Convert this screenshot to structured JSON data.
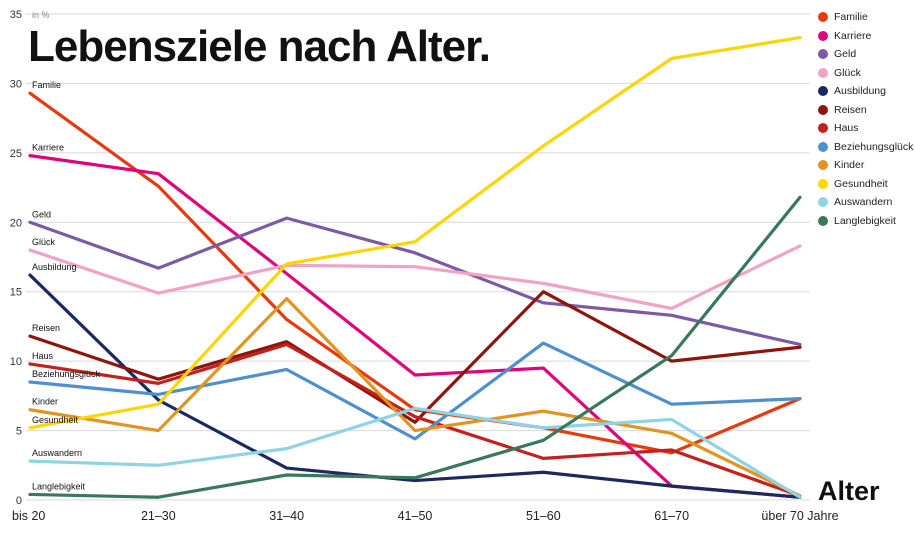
{
  "title": "Lebensziele nach Alter.",
  "chart_data": {
    "type": "line",
    "title": "Lebensziele nach Alter.",
    "unit_label": "in %",
    "xlabel": "Alter",
    "ylabel": "",
    "ylim": [
      0,
      35
    ],
    "y_ticks": [
      0,
      5,
      10,
      15,
      20,
      25,
      30,
      35
    ],
    "grid": true,
    "legend_position": "right",
    "categories": [
      "bis 20",
      "21–30",
      "31–40",
      "41–50",
      "51–60",
      "61–70",
      "über 70 Jahre"
    ],
    "series": [
      {
        "name": "Familie",
        "color": "#e8390e",
        "values": [
          29.3,
          22.6,
          13.0,
          6.5,
          5.2,
          3.4,
          7.3
        ]
      },
      {
        "name": "Karriere",
        "color": "#e0047c",
        "values": [
          24.8,
          23.5,
          16.3,
          9.0,
          9.5,
          1.0,
          0.2
        ]
      },
      {
        "name": "Geld",
        "color": "#7b5aa6",
        "values": [
          20.0,
          16.7,
          20.3,
          17.8,
          14.2,
          13.3,
          11.2
        ]
      },
      {
        "name": "Glück",
        "color": "#f0a3c4",
        "values": [
          18.0,
          14.9,
          16.9,
          16.8,
          15.6,
          13.8,
          18.3
        ]
      },
      {
        "name": "Ausbildung",
        "color": "#1b2960",
        "values": [
          16.2,
          7.2,
          2.3,
          1.4,
          2.0,
          1.0,
          0.2
        ]
      },
      {
        "name": "Reisen",
        "color": "#8c150c",
        "values": [
          11.8,
          8.7,
          11.4,
          5.6,
          15.0,
          10.0,
          11.0
        ]
      },
      {
        "name": "Haus",
        "color": "#c4201c",
        "values": [
          9.8,
          8.4,
          11.2,
          6.0,
          3.0,
          3.6,
          0.3
        ]
      },
      {
        "name": "Beziehungsglück",
        "color": "#4e8fd0",
        "values": [
          8.5,
          7.6,
          9.4,
          4.4,
          11.3,
          6.9,
          7.3
        ]
      },
      {
        "name": "Kinder",
        "color": "#e39420",
        "values": [
          6.5,
          5.0,
          14.5,
          5.0,
          6.4,
          4.8,
          0.3
        ]
      },
      {
        "name": "Gesundheit",
        "color": "#ffd500",
        "values": [
          5.2,
          6.9,
          17.0,
          18.6,
          25.5,
          31.8,
          33.3
        ]
      },
      {
        "name": "Auswandern",
        "color": "#8ed4e4",
        "values": [
          2.8,
          2.5,
          3.7,
          6.6,
          5.2,
          5.8,
          0.2
        ]
      },
      {
        "name": "Langlebigkeit",
        "color": "#39785a",
        "values": [
          0.4,
          0.2,
          1.8,
          1.6,
          4.3,
          10.4,
          21.8
        ]
      }
    ]
  }
}
